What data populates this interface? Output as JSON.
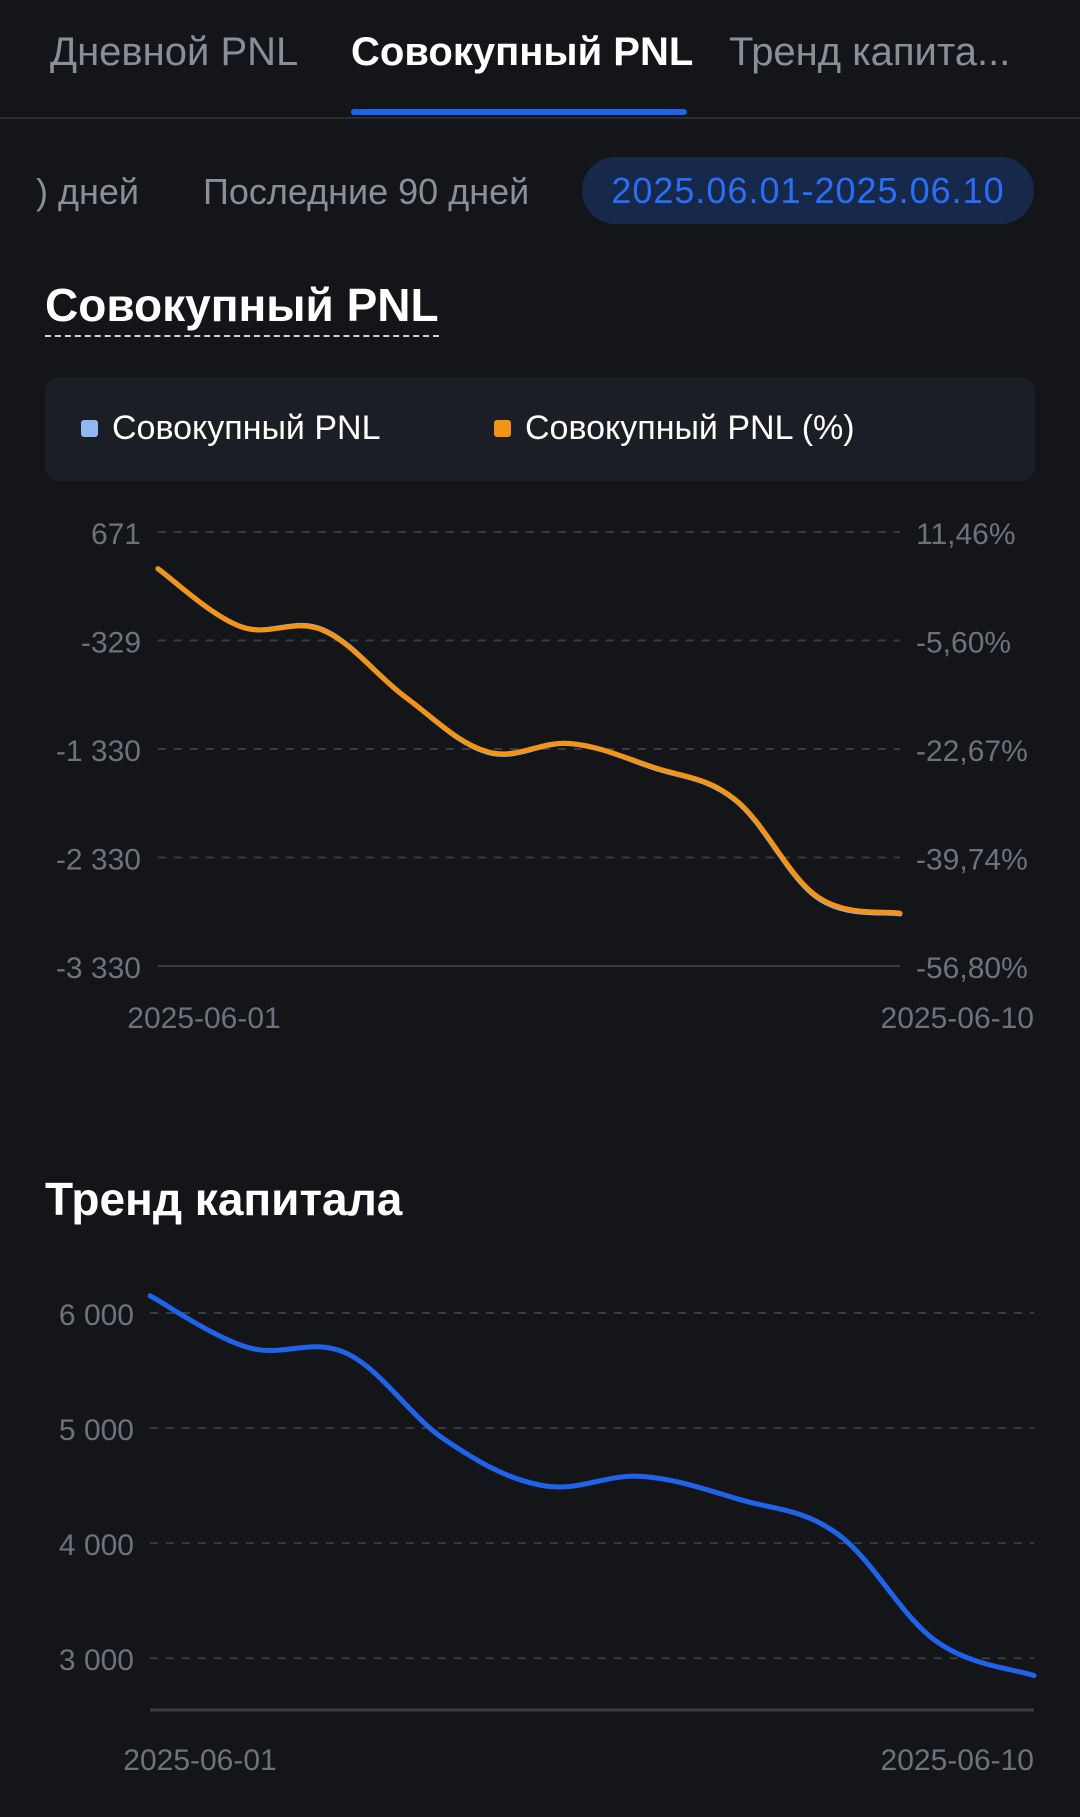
{
  "tabs": [
    {
      "label": "Дневной PNL"
    },
    {
      "label": "Совокупный PNL"
    },
    {
      "label": "Тренд капита..."
    }
  ],
  "filters": {
    "partial_label": ") дней",
    "last90_label": "Последние 90 дней",
    "selected_range": "2025.06.01-2025.06.10"
  },
  "pnl_section": {
    "title": "Совокупный PNL",
    "legend": [
      {
        "label": "Совокупный PNL",
        "color": "#8fb8f2"
      },
      {
        "label": "Совокупный PNL (%)",
        "color": "#f29418"
      }
    ]
  },
  "capital_section": {
    "title": "Тренд капитала"
  },
  "colors": {
    "accent_blue": "#1f63ea",
    "pnl_line": "#8fb8f2",
    "pnl_pct_line": "#f29418",
    "background": "#141519"
  },
  "chart_data": [
    {
      "type": "line",
      "y_ticks": [
        "671",
        "-329",
        "-1 330",
        "-2 330",
        "-3 330"
      ],
      "y2_ticks": [
        "11,46%",
        "-5,60%",
        "-22,67%",
        "-39,74%",
        "-56,80%"
      ],
      "x_tick_labels": [
        "2025-06-01",
        "2025-06-10"
      ],
      "ylim": [
        -3330,
        671
      ],
      "y2lim": [
        -56.8,
        11.46
      ],
      "grid": true,
      "x": [
        "2025-06-01",
        "2025-06-02",
        "2025-06-03",
        "2025-06-04",
        "2025-06-05",
        "2025-06-06",
        "2025-06-07",
        "2025-06-08",
        "2025-06-09",
        "2025-06-10"
      ],
      "series": [
        {
          "name": "Совокупный PNL",
          "axis": "left",
          "values": [
            330,
            -200,
            -230,
            -850,
            -1360,
            -1280,
            -1500,
            -1800,
            -2700,
            -2850
          ]
        },
        {
          "name": "Совокупный PNL (%)",
          "axis": "right",
          "values": [
            5.7,
            -3.4,
            -4.0,
            -14.5,
            -23.1,
            -21.8,
            -25.5,
            -30.6,
            -45.9,
            -48.5
          ]
        }
      ]
    },
    {
      "type": "line",
      "y_ticks": [
        "6 000",
        "5 000",
        "4 000",
        "3 000"
      ],
      "x_tick_labels": [
        "2025-06-01",
        "2025-06-10"
      ],
      "ylim": [
        2550,
        6200
      ],
      "grid": true,
      "x": [
        "2025-06-01",
        "2025-06-02",
        "2025-06-03",
        "2025-06-04",
        "2025-06-05",
        "2025-06-06",
        "2025-06-07",
        "2025-06-08",
        "2025-06-09",
        "2025-06-10"
      ],
      "series": [
        {
          "values": [
            6150,
            5700,
            5650,
            4900,
            4500,
            4580,
            4380,
            4080,
            3150,
            2850
          ]
        }
      ]
    }
  ]
}
